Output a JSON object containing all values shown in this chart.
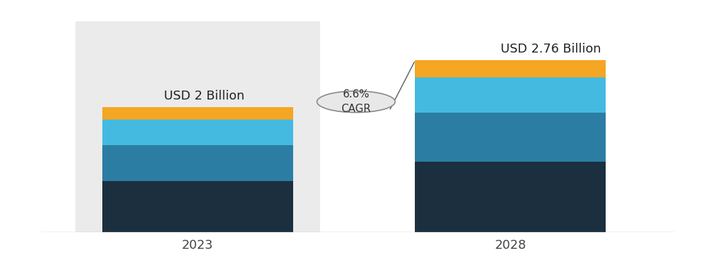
{
  "bar_positions": [
    0.27,
    0.73
  ],
  "bar_width": 0.28,
  "segments_2023": [
    0.72,
    0.5,
    0.36,
    0.17
  ],
  "segments_2028": [
    0.99,
    0.69,
    0.495,
    0.235
  ],
  "colors": [
    "#1b2f3f",
    "#2b7da4",
    "#45bae0",
    "#f5a623"
  ],
  "label_2023": "USD 2 Billion",
  "label_2028": "USD 2.76 Billion",
  "cagr_text": "6.6%\nCAGR",
  "year_labels": [
    "2023",
    "2028"
  ],
  "annotation_fontsize": 13,
  "year_fontsize": 13,
  "cagr_fontsize": 11,
  "bg_gray": "#ebebeb",
  "bg_white": "#ffffff"
}
